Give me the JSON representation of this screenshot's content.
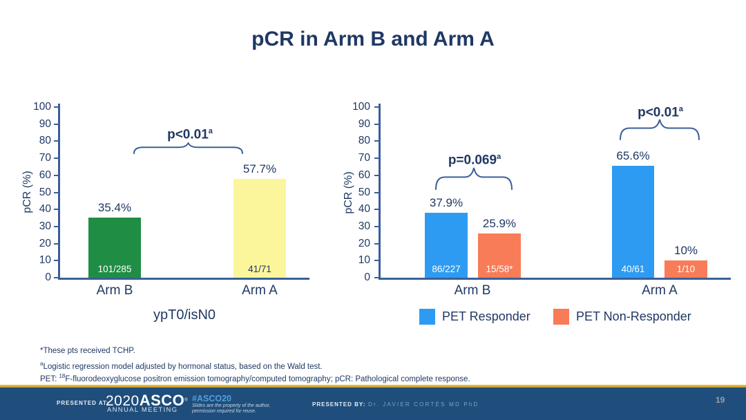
{
  "title": "pCR in Arm B and Arm A",
  "colors": {
    "navy": "#1F3864",
    "line": "#3A5F99",
    "green": "#1F8E44",
    "yellow": "#FBF69B",
    "blue": "#2E9BF2",
    "orange": "#F87C58",
    "footer_bg": "#1F4E7C",
    "gold": "#DCA62B",
    "hashtag_blue": "#4EA0DA"
  },
  "chart_data": [
    {
      "type": "bar",
      "title": "ypT0/isN0",
      "ylabel": "pCR (%)",
      "ylim": [
        0,
        100
      ],
      "yticks": [
        0,
        10,
        20,
        30,
        40,
        50,
        60,
        70,
        80,
        90,
        100
      ],
      "grid": "off",
      "categories": [
        "Arm B",
        "Arm A"
      ],
      "values": [
        35.4,
        57.7
      ],
      "bar_labels": [
        "35.4%",
        "57.7%"
      ],
      "bar_counts": [
        "101/285",
        "41/71"
      ],
      "bar_colors": [
        "#1F8E44",
        "#FBF69B"
      ],
      "count_colors": [
        "#FFFFFF",
        "#1F3864"
      ],
      "annotation": {
        "text": "p<0.01",
        "sup": "a"
      }
    },
    {
      "type": "bar",
      "ylabel": "pCR (%)",
      "ylim": [
        0,
        100
      ],
      "yticks": [
        0,
        10,
        20,
        30,
        40,
        50,
        60,
        70,
        80,
        90,
        100
      ],
      "grid": "off",
      "categories": [
        "Arm B",
        "Arm A"
      ],
      "series": [
        {
          "name": "PET Responder",
          "color": "#2E9BF2",
          "values": [
            37.9,
            65.6
          ],
          "labels": [
            "37.9%",
            "65.6%"
          ],
          "counts": [
            "86/227",
            "40/61"
          ]
        },
        {
          "name": "PET Non-Responder",
          "color": "#F87C58",
          "values": [
            25.9,
            10
          ],
          "labels": [
            "25.9%",
            "10%"
          ],
          "counts": [
            "15/58*",
            "1/10"
          ]
        }
      ],
      "annotations": [
        {
          "text": "p=0.069",
          "sup": "a"
        },
        {
          "text": "p<0.01",
          "sup": "a"
        }
      ],
      "legend_position": "bottom"
    }
  ],
  "footnotes": {
    "line1": "*These pts received TCHP.",
    "line2_sup": "a",
    "line2": "Logistic regression model adjusted by hormonal status, based on the Wald test.",
    "line3_pre": "PET: ",
    "line3_sup": "18",
    "line3": "F-fluorodeoxyglucose positron emission tomography/computed tomography; pCR: Pathological complete response."
  },
  "footer": {
    "presented_at_label": "PRESENTED AT:",
    "logo_year": "2020",
    "logo_name": "ASCO",
    "logo_mark": "®",
    "logo_sub": "ANNUAL MEETING",
    "hashtag": "#ASCO20",
    "disclaimer_line1": "Slides are the property of the author,",
    "disclaimer_line2": "permission required for reuse.",
    "presented_by_label": "PRESENTED BY:",
    "presenter": "Dr. JAVIER CORTÉS MD PhD",
    "page_number": "19"
  }
}
